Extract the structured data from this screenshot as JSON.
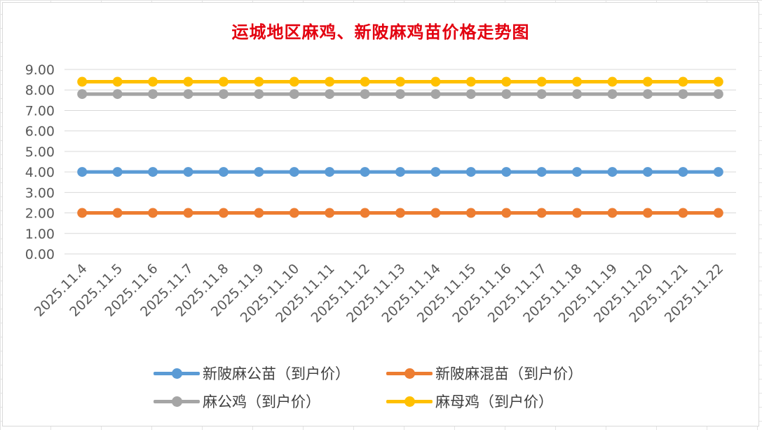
{
  "chart_data": {
    "type": "line",
    "title": "运城地区麻鸡、新陂麻鸡苗价格走势图",
    "categories": [
      "2025.11.4",
      "2025.11.5",
      "2025.11.6",
      "2025.11.7",
      "2025.11.8",
      "2025.11.9",
      "2025.11.10",
      "2025.11.11",
      "2025.11.12",
      "2025.11.13",
      "2025.11.14",
      "2025.11.15",
      "2025.11.16",
      "2025.11.17",
      "2025.11.18",
      "2025.11.19",
      "2025.11.20",
      "2025.11.21",
      "2025.11.22"
    ],
    "ylim": [
      0,
      9
    ],
    "yticks": [
      "0.00",
      "1.00",
      "2.00",
      "3.00",
      "4.00",
      "5.00",
      "6.00",
      "7.00",
      "8.00",
      "9.00"
    ],
    "grid": true,
    "legend_position": "bottom",
    "series": [
      {
        "name": "新陂麻公苗（到户价）",
        "color": "#5b9bd5",
        "values": [
          4,
          4,
          4,
          4,
          4,
          4,
          4,
          4,
          4,
          4,
          4,
          4,
          4,
          4,
          4,
          4,
          4,
          4,
          4
        ]
      },
      {
        "name": "新陂麻混苗（到户价）",
        "color": "#ed7d31",
        "values": [
          2,
          2,
          2,
          2,
          2,
          2,
          2,
          2,
          2,
          2,
          2,
          2,
          2,
          2,
          2,
          2,
          2,
          2,
          2
        ]
      },
      {
        "name": "麻公鸡（到户价）",
        "color": "#a5a5a5",
        "values": [
          7.8,
          7.8,
          7.8,
          7.8,
          7.8,
          7.8,
          7.8,
          7.8,
          7.8,
          7.8,
          7.8,
          7.8,
          7.8,
          7.8,
          7.8,
          7.8,
          7.8,
          7.8,
          7.8
        ]
      },
      {
        "name": "麻母鸡（到户价）",
        "color": "#ffc000",
        "values": [
          8.4,
          8.4,
          8.4,
          8.4,
          8.4,
          8.4,
          8.4,
          8.4,
          8.4,
          8.4,
          8.4,
          8.4,
          8.4,
          8.4,
          8.4,
          8.4,
          8.4,
          8.4,
          8.4
        ]
      }
    ]
  }
}
